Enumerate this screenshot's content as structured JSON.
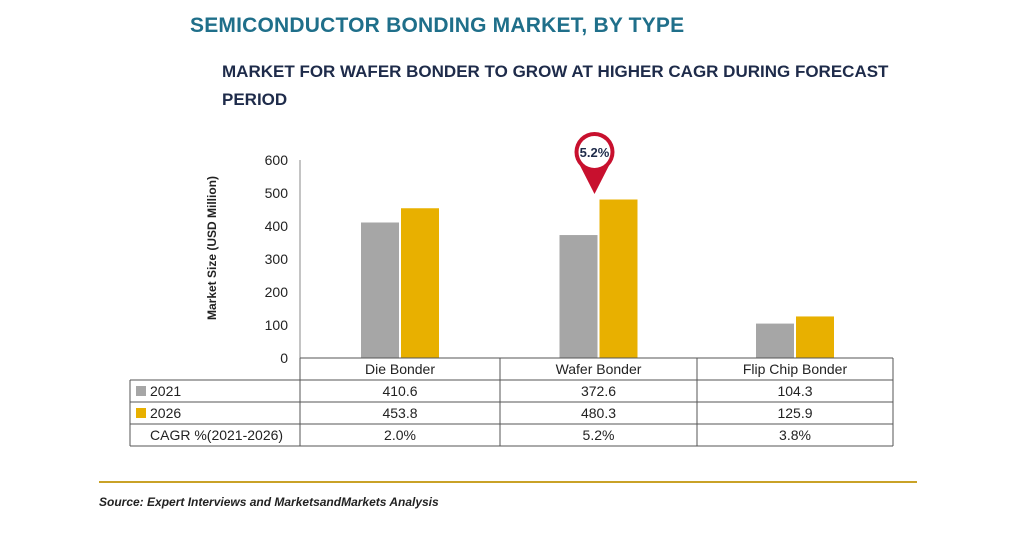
{
  "header": {
    "title": "SEMICONDUCTOR BONDING MARKET, BY TYPE",
    "subtitle": "MARKET FOR WAFER BONDER TO GROW AT HIGHER CAGR DURING FORECAST PERIOD"
  },
  "callout": {
    "text": "5.2%",
    "color": "#c8102e"
  },
  "source": "Source: Expert Interviews and MarketsandMarkets Analysis",
  "colors": {
    "series_2021": "#a6a6a6",
    "series_2026": "#e8b000",
    "rule": "#c9a227"
  },
  "chart_data": {
    "type": "bar",
    "title": "MARKET FOR WAFER BONDER TO GROW AT HIGHER CAGR DURING FORECAST PERIOD",
    "ylabel": "Market Size (USD Million)",
    "xlabel": "",
    "ylim": [
      0,
      600
    ],
    "yticks": [
      "0",
      "100",
      "200",
      "300",
      "400",
      "500",
      "600"
    ],
    "categories": [
      "Die Bonder",
      "Wafer Bonder",
      "Flip Chip Bonder"
    ],
    "series": [
      {
        "name": "2021",
        "values": [
          410.6,
          372.6,
          104.3
        ],
        "labels": [
          "410.6",
          "372.6",
          "104.3"
        ]
      },
      {
        "name": "2026",
        "values": [
          453.8,
          480.3,
          125.9
        ],
        "labels": [
          "453.8",
          "480.3",
          "125.9"
        ]
      }
    ],
    "cagr_row": {
      "label": "CAGR %(2021-2026)",
      "values": [
        "2.0%",
        "5.2%",
        "3.8%"
      ]
    },
    "grid": false,
    "legend": "data table"
  }
}
